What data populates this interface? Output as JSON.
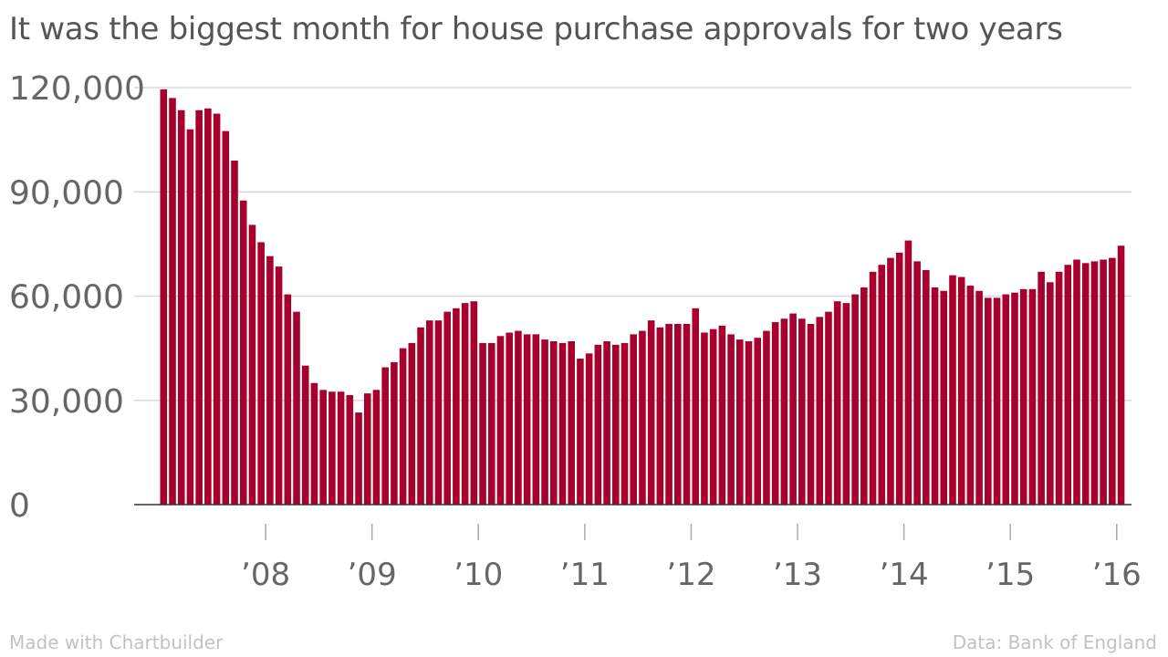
{
  "chart_data": {
    "type": "bar",
    "title": "It was the biggest month for house purchase approvals for two years",
    "xlabel": "",
    "ylabel": "",
    "ylim": [
      0,
      120000
    ],
    "yticks": [
      0,
      30000,
      60000,
      90000,
      120000
    ],
    "ytick_labels": [
      "0",
      "30,000",
      "60,000",
      "90,000",
      "120,000"
    ],
    "x_tick_labels": [
      "’08",
      "’09",
      "’10",
      "’11",
      "’12",
      "’13",
      "’14",
      "’15",
      "’16"
    ],
    "bar_color": "#a8002c",
    "gridline_color": "#d9d9d9",
    "start_month": "2007-01",
    "series": [
      {
        "name": "House purchase approvals",
        "values": [
          119500,
          117000,
          113500,
          108000,
          113500,
          114000,
          112500,
          107500,
          99000,
          87500,
          80500,
          75500,
          71500,
          68500,
          60500,
          55500,
          40000,
          35000,
          33000,
          32500,
          32500,
          31500,
          26500,
          32000,
          33000,
          39500,
          41000,
          45000,
          46500,
          51000,
          53000,
          53000,
          55500,
          56500,
          58000,
          58500,
          46500,
          46500,
          48500,
          49500,
          50000,
          49000,
          49000,
          47500,
          47000,
          46500,
          47000,
          42000,
          43500,
          46000,
          47000,
          46000,
          46500,
          49000,
          50000,
          53000,
          51000,
          52000,
          52000,
          52000,
          56500,
          49500,
          50500,
          51500,
          49000,
          47500,
          47000,
          48000,
          50000,
          52500,
          53500,
          55000,
          53500,
          52000,
          54000,
          55500,
          58500,
          58000,
          60500,
          62500,
          67000,
          69000,
          71000,
          72500,
          76000,
          70000,
          67500,
          62500,
          61500,
          66000,
          65500,
          63000,
          61500,
          59500,
          59500,
          60500,
          61000,
          62000,
          62000,
          67000,
          64000,
          67000,
          69000,
          70500,
          69500,
          70000,
          70500,
          71000,
          74500
        ]
      }
    ]
  },
  "footer": {
    "credit": "Made with Chartbuilder",
    "source": "Data: Bank of England"
  }
}
